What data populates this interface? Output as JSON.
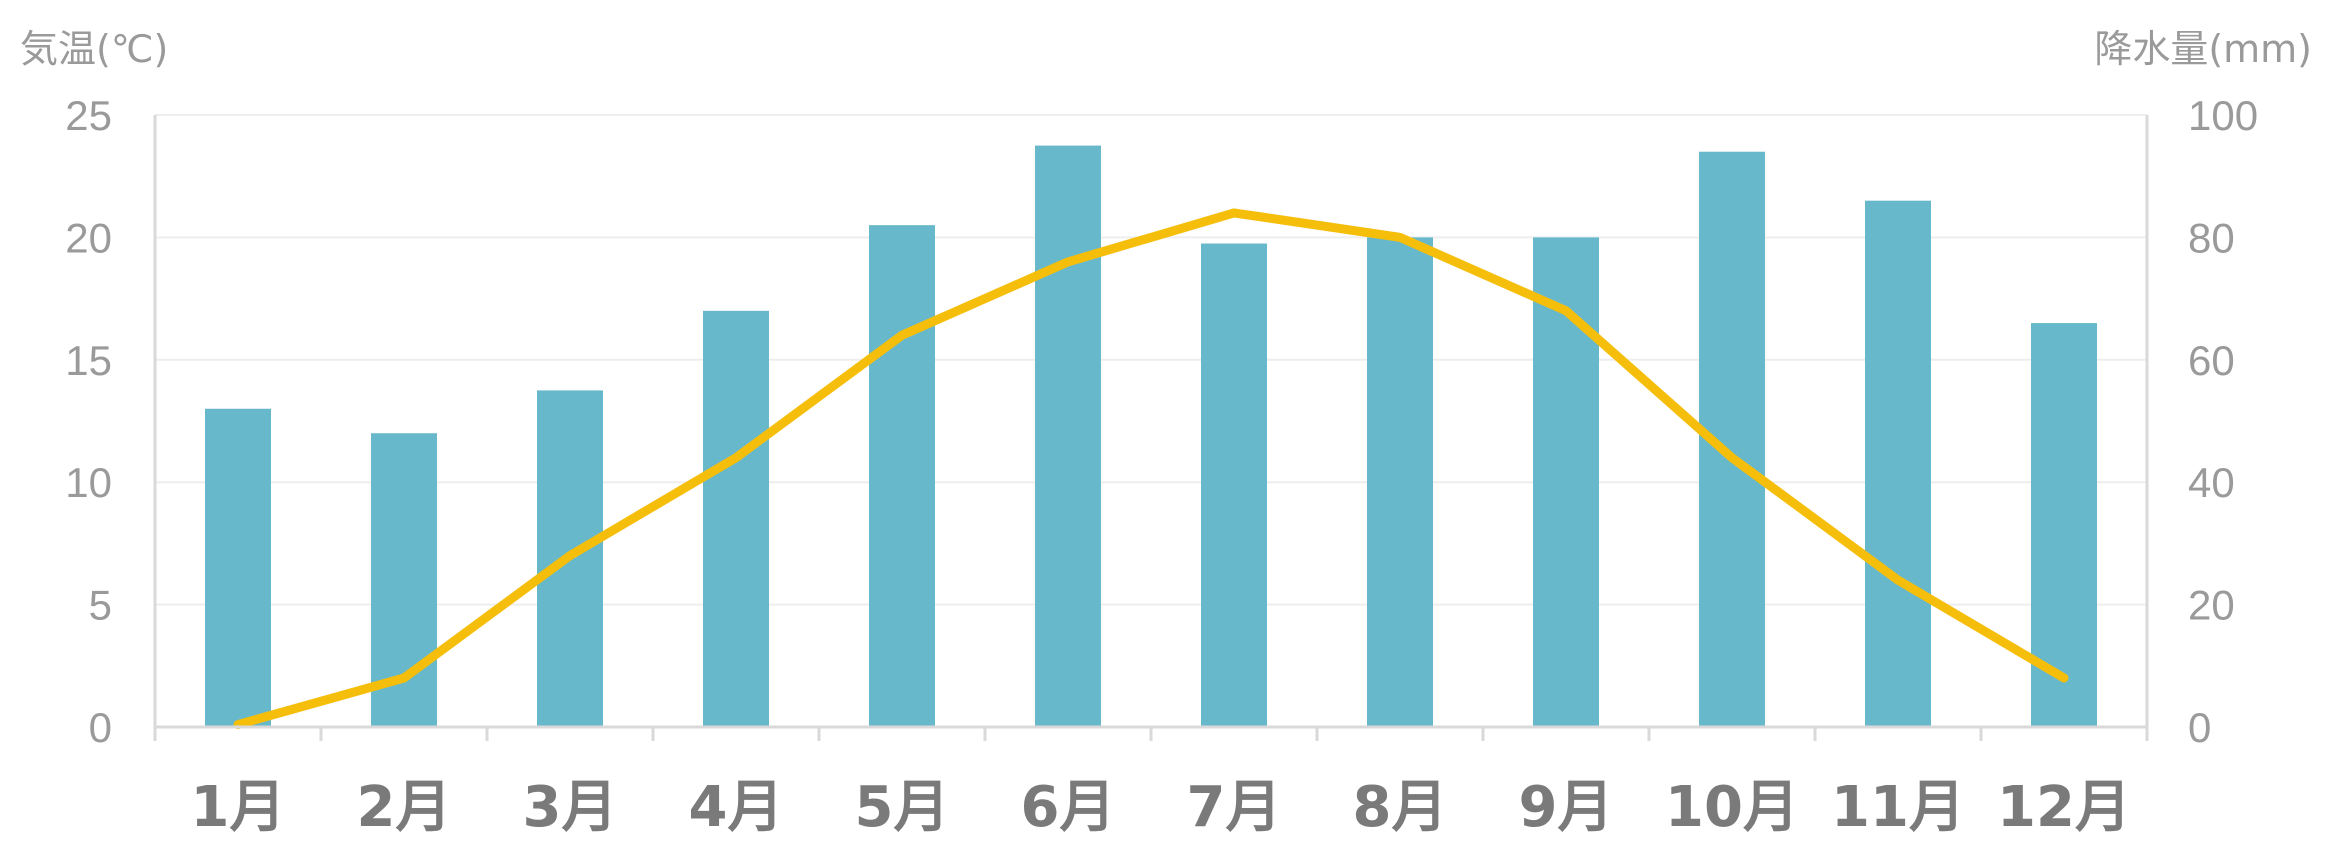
{
  "chart_data": {
    "type": "bar",
    "categories": [
      "1月",
      "2月",
      "3月",
      "4月",
      "5月",
      "6月",
      "7月",
      "8月",
      "9月",
      "10月",
      "11月",
      "12月"
    ],
    "left_axis": {
      "label": "気温(℃)",
      "ylim": [
        0,
        25
      ],
      "ticks": [
        "0",
        "5",
        "10",
        "15",
        "20",
        "25"
      ]
    },
    "right_axis": {
      "label": "降水量(mm)",
      "ylim": [
        0,
        100
      ],
      "ticks": [
        "0",
        "20",
        "40",
        "60",
        "80",
        "100"
      ]
    },
    "series": [
      {
        "type": "bar",
        "axis": "right",
        "color": "#67B8CB",
        "values": [
          52,
          48,
          55,
          68,
          82,
          95,
          79,
          80,
          80,
          94,
          86,
          66
        ]
      },
      {
        "type": "line",
        "axis": "left",
        "color": "#F5BE0B",
        "values": [
          0.1,
          2.0,
          7.0,
          11.0,
          16.0,
          19.0,
          21.0,
          20.0,
          17.0,
          11.0,
          6.0,
          2.0
        ]
      }
    ],
    "grid": true,
    "legend": "none"
  }
}
